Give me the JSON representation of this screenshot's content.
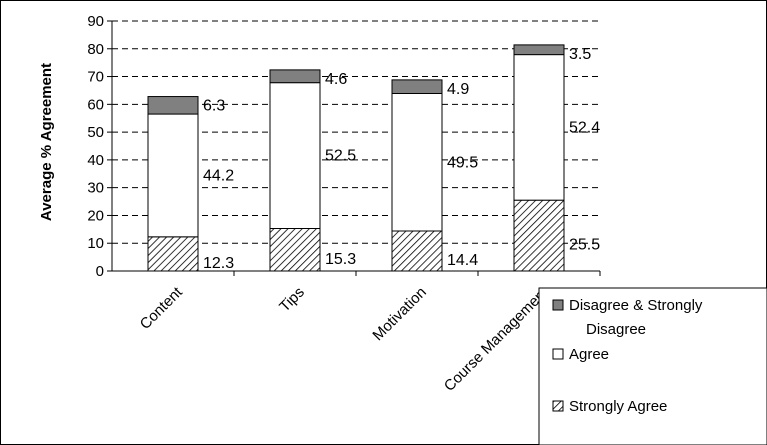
{
  "chart_data": {
    "type": "bar",
    "stacked": true,
    "title": "",
    "xlabel": "",
    "ylabel": "Average % Agreement",
    "ylim": [
      0,
      90
    ],
    "yticks": [
      0,
      10,
      20,
      30,
      40,
      50,
      60,
      70,
      80,
      90
    ],
    "grid": true,
    "legend_position": "bottom-right",
    "categories": [
      "Content",
      "Tips",
      "Motivation",
      "Course Management"
    ],
    "series": [
      {
        "name": "Strongly Agree",
        "values": [
          12.3,
          15.3,
          14.4,
          25.5
        ],
        "pattern": "hatch"
      },
      {
        "name": "Agree",
        "values": [
          44.2,
          52.5,
          49.5,
          52.4
        ],
        "color": "#ffffff"
      },
      {
        "name": "Disagree & Strongly Disagree",
        "values": [
          6.3,
          4.6,
          4.9,
          3.5
        ],
        "color": "#808080"
      }
    ],
    "data_labels": [
      [
        "12.3",
        "15.3",
        "14.4",
        "25.5"
      ],
      [
        "44.2",
        "52.5",
        "49.5",
        "52.4"
      ],
      [
        "6.3",
        "4.6",
        "4.9",
        "3.5"
      ]
    ]
  },
  "legend": {
    "disagree_line1": "Disagree & Strongly",
    "disagree_line2": "Disagree",
    "agree": "Agree",
    "strongly_agree": "Strongly Agree"
  }
}
